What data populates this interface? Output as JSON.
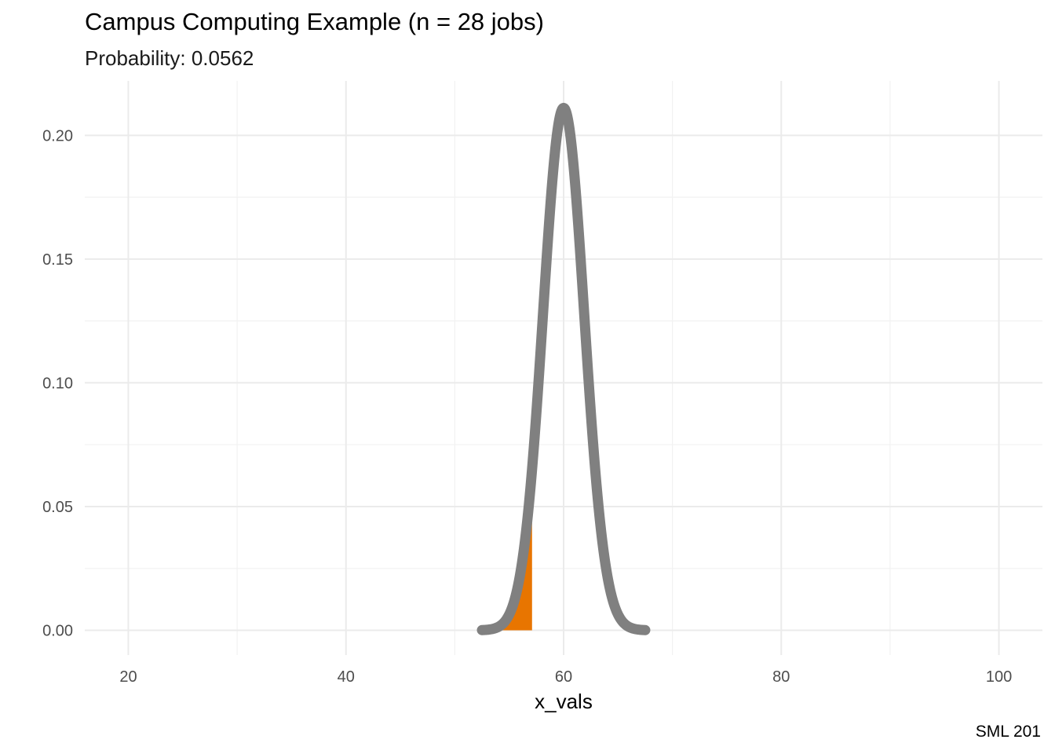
{
  "chart_data": {
    "type": "area",
    "title": "Campus Computing Example (n = 28 jobs)",
    "subtitle": "Probability: 0.0562",
    "caption": "SML 201",
    "xlabel": "x_vals",
    "ylabel": "",
    "xlim": [
      16,
      104
    ],
    "ylim": [
      -0.01,
      0.222
    ],
    "x_ticks": [
      20,
      40,
      60,
      80,
      100
    ],
    "x_tick_labels": [
      "20",
      "40",
      "60",
      "80",
      "100"
    ],
    "y_ticks": [
      0.0,
      0.05,
      0.1,
      0.15,
      0.2
    ],
    "y_tick_labels": [
      "0.00",
      "0.05",
      "0.10",
      "0.15",
      "0.20"
    ],
    "grid": true,
    "legend": "none",
    "series": [
      {
        "kind": "line",
        "distribution": "normal density",
        "mean": 60,
        "sd": 1.89,
        "x_range": [
          52.5,
          67.5
        ],
        "color": "#808080"
      },
      {
        "kind": "shaded-area",
        "distribution": "normal density",
        "mean": 60,
        "sd": 1.89,
        "x_range": [
          53.5,
          57.1
        ],
        "color": "#E87500",
        "probability": 0.0562
      }
    ]
  }
}
